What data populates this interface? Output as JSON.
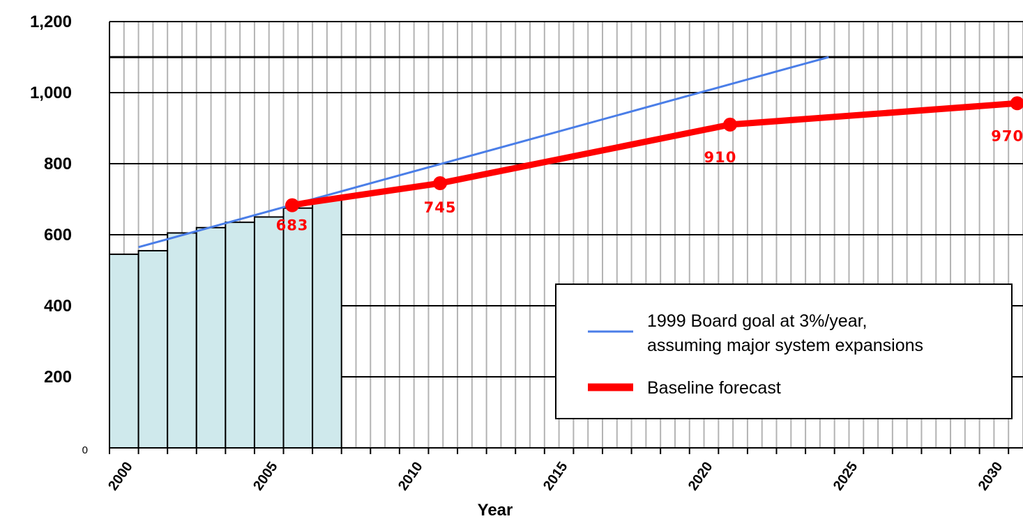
{
  "chart_data": {
    "type": "bar+line",
    "xlabel": "Year",
    "ylabel": "",
    "ylim": [
      0,
      1200
    ],
    "xlim": [
      1999,
      2030.5
    ],
    "y_ticks": [
      "0",
      "200",
      "400",
      "600",
      "800",
      "1,000",
      "1,200"
    ],
    "y_tick_values": [
      0,
      200,
      400,
      600,
      800,
      1000,
      1200
    ],
    "x_ticks": [
      "2000",
      "2005",
      "2010",
      "2015",
      "2020",
      "2025",
      "2030"
    ],
    "x_tick_values": [
      2000,
      2005,
      2010,
      2015,
      2020,
      2025,
      2030
    ],
    "reference_line_value": 1100,
    "bars": {
      "x": [
        1999,
        2000,
        2001,
        2002,
        2003,
        2004,
        2005,
        2006
      ],
      "values": [
        545,
        555,
        605,
        620,
        635,
        650,
        675,
        700
      ],
      "color": "#cfe9ec"
    },
    "series": [
      {
        "name": "1999 Board goal at 3%/year, assuming major system expansions",
        "color": "#4a7ee8",
        "x": [
          2000,
          2023.8
        ],
        "y": [
          565,
          1100
        ]
      },
      {
        "name": "Baseline forecast",
        "color": "#ff0000",
        "x": [
          2005.3,
          2005.8,
          2010.4,
          2020.4,
          2030.3
        ],
        "y": [
          683,
          690,
          745,
          910,
          970
        ],
        "markers": [
          {
            "x": 2005.3,
            "y": 683,
            "label": "683"
          },
          {
            "x": 2010.4,
            "y": 745,
            "label": "745"
          },
          {
            "x": 2020.4,
            "y": 910,
            "label": "910"
          },
          {
            "x": 2030.3,
            "y": 970,
            "label": "970"
          }
        ]
      }
    ],
    "legend": {
      "placement": "bottom-right",
      "entries": [
        {
          "line1": "1999 Board goal at 3%/year,",
          "line2": "assuming major system expansions",
          "color": "#4a7ee8",
          "style": "thin"
        },
        {
          "line1": "Baseline forecast",
          "line2": "",
          "color": "#ff0000",
          "style": "thick"
        }
      ]
    }
  }
}
